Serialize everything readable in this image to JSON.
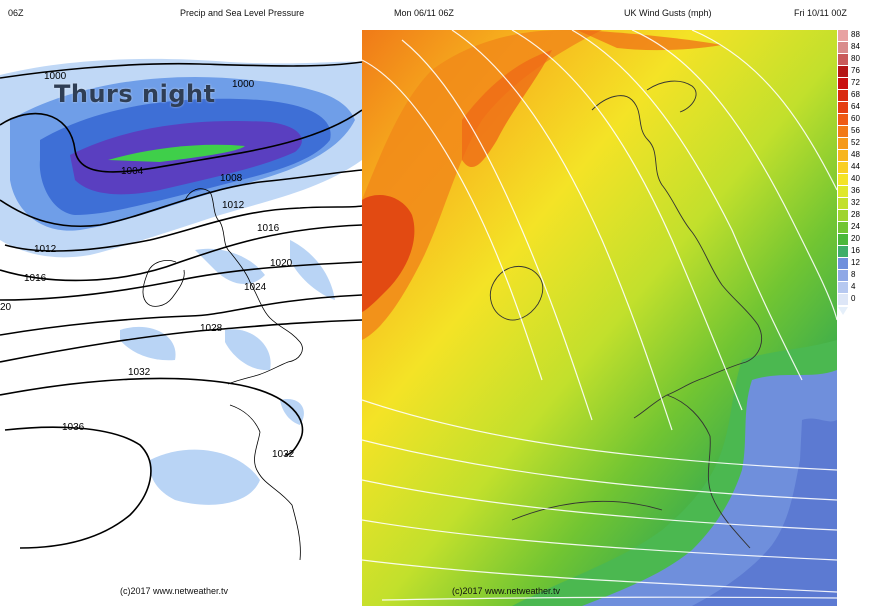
{
  "left_map": {
    "corner_label": "06Z",
    "title": "Precip and Sea Level Pressure",
    "overlay_text": "Thurs night",
    "credit": "(c)2017 www.netweather.tv",
    "isobar_labels": [
      "1000",
      "1000",
      "1004",
      "1008",
      "1012",
      "1012",
      "1016",
      "1016",
      "1020",
      "1024",
      "20",
      "1028",
      "1032",
      "1036",
      "1032"
    ]
  },
  "right_map": {
    "valid_time": "Mon 06/11 06Z",
    "title": "UK Wind Gusts (mph)",
    "run_time": "Fri 10/11 00Z",
    "credit": "(c)2017 www.netweather.tv",
    "colorbar": [
      {
        "label": "88",
        "color": "#e8a2a2"
      },
      {
        "label": "84",
        "color": "#d98b8b"
      },
      {
        "label": "80",
        "color": "#c95a5a"
      },
      {
        "label": "76",
        "color": "#b51616"
      },
      {
        "label": "72",
        "color": "#c91010"
      },
      {
        "label": "68",
        "color": "#d92a10"
      },
      {
        "label": "64",
        "color": "#e53e12"
      },
      {
        "label": "60",
        "color": "#ef5a14"
      },
      {
        "label": "56",
        "color": "#f27a16"
      },
      {
        "label": "52",
        "color": "#f59a1a"
      },
      {
        "label": "48",
        "color": "#f7b51e"
      },
      {
        "label": "44",
        "color": "#f9cf22"
      },
      {
        "label": "40",
        "color": "#f4e326"
      },
      {
        "label": "36",
        "color": "#dfe82a"
      },
      {
        "label": "32",
        "color": "#c2e02c"
      },
      {
        "label": "28",
        "color": "#9fd42e"
      },
      {
        "label": "24",
        "color": "#72c532"
      },
      {
        "label": "20",
        "color": "#4bb83a"
      },
      {
        "label": "16",
        "color": "#3fae6a"
      },
      {
        "label": "12",
        "color": "#6f8fdc"
      },
      {
        "label": "8",
        "color": "#8fa8e6"
      },
      {
        "label": "4",
        "color": "#b6c8f0"
      },
      {
        "label": "0",
        "color": "#dde6f7"
      }
    ]
  }
}
